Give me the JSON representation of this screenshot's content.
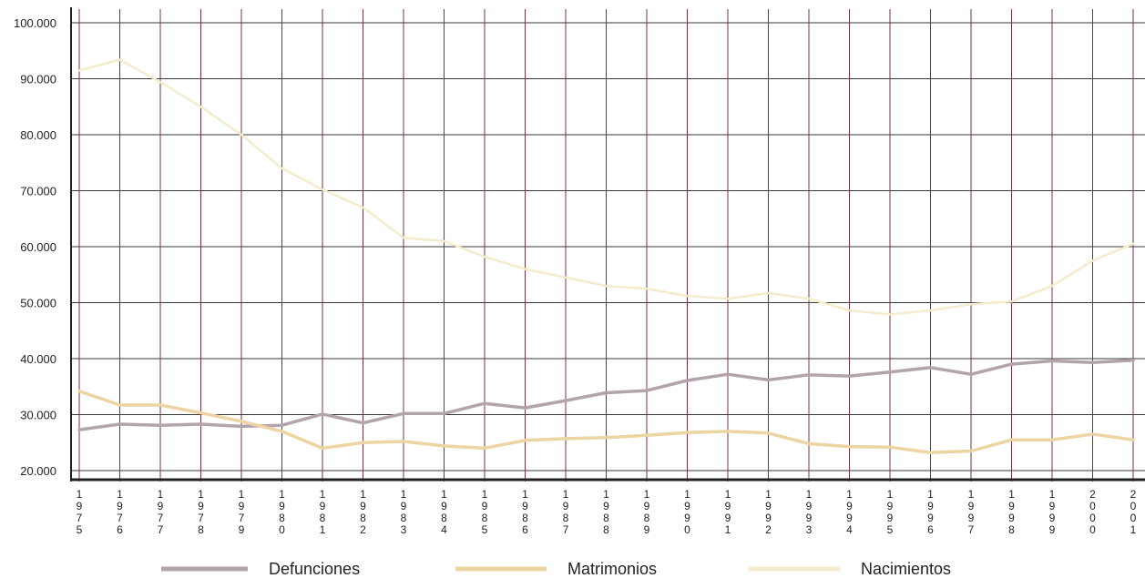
{
  "chart_data": {
    "type": "line",
    "title": "",
    "xlabel": "",
    "ylabel": "",
    "ylim": [
      20000,
      100000
    ],
    "grid": true,
    "legend_position": "bottom",
    "y_ticks": [
      "100.000",
      "90.000",
      "80.000",
      "70.000",
      "60.000",
      "50.000",
      "40.000",
      "30.000",
      "20.000"
    ],
    "x": [
      "1975",
      "1976",
      "1977",
      "1978",
      "1979",
      "1980",
      "1981",
      "1982",
      "1983",
      "1984",
      "1985",
      "1986",
      "1987",
      "1988",
      "1989",
      "1990",
      "1991",
      "1992",
      "1993",
      "1994",
      "1995",
      "1996",
      "1997",
      "1998",
      "1999",
      "2000",
      "2001"
    ],
    "series": [
      {
        "name": "Defunciones",
        "color": "#b3a3ac",
        "values": [
          27300,
          28300,
          28100,
          28300,
          27900,
          28100,
          30100,
          28500,
          30200,
          30200,
          32000,
          31200,
          32500,
          33900,
          34300,
          36100,
          37200,
          36200,
          37100,
          36900,
          37600,
          38400,
          37200,
          39000,
          39600,
          39300,
          39700
        ]
      },
      {
        "name": "Matrimonios",
        "color": "#ecd5a2",
        "values": [
          34200,
          31700,
          31700,
          30300,
          28800,
          27000,
          24000,
          25000,
          25200,
          24400,
          24000,
          25400,
          25700,
          25900,
          26300,
          26800,
          27000,
          26700,
          24800,
          24300,
          24200,
          23200,
          23500,
          25500,
          25500,
          26500,
          25500
        ]
      },
      {
        "name": "Nacimientos",
        "color": "#f5ebcd",
        "values": [
          91500,
          93400,
          89400,
          85000,
          80000,
          74000,
          70200,
          67000,
          61600,
          61000,
          58200,
          56000,
          54500,
          53000,
          52500,
          51200,
          50700,
          51700,
          50700,
          48600,
          47900,
          48600,
          49700,
          50200,
          53000,
          57500,
          60500
        ]
      }
    ]
  }
}
